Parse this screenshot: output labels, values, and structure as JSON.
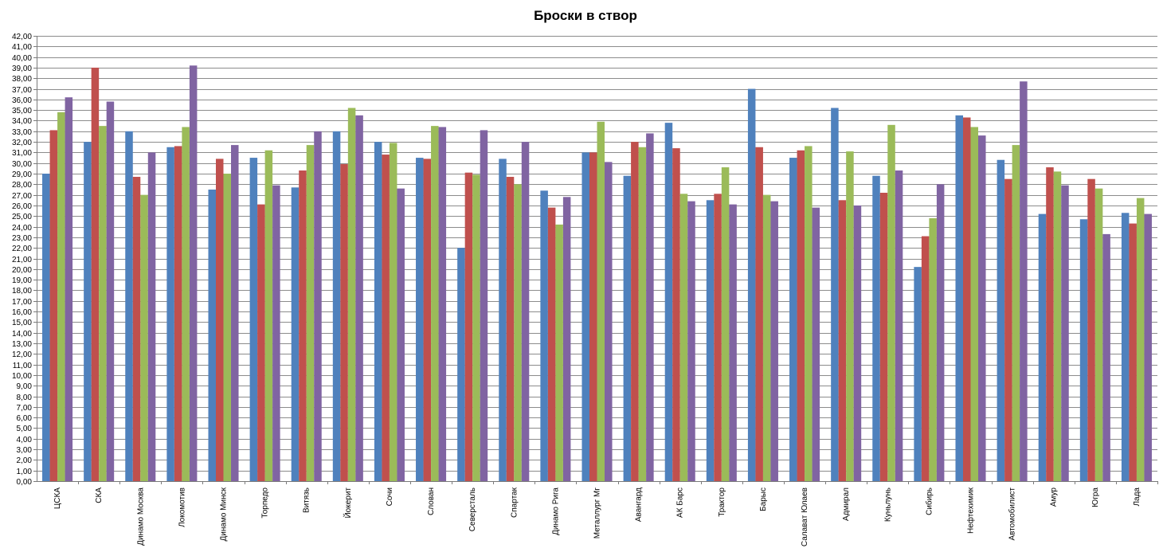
{
  "chart_data": {
    "type": "bar",
    "title": "Броски в створ",
    "xlabel": "",
    "ylabel": "",
    "ylim": [
      0,
      42
    ],
    "ytick_step": 1,
    "ytick_format": "comma-2-decimals",
    "grid": true,
    "legend": "none",
    "colors": [
      "#4f81bd",
      "#c0504d",
      "#9bbb59",
      "#8064a2"
    ],
    "categories": [
      "ЦСКА",
      "СКА",
      "Динамо Москва",
      "Локомотив",
      "Динамо Минск",
      "Торпедо",
      "Витязь",
      "Йокерит",
      "Сочи",
      "Слован",
      "Северсталь",
      "Спартак",
      "Динамо Рига",
      "Металлург Мг",
      "Авангард",
      "АК Барс",
      "Трактор",
      "Барыс",
      "Салават Юлаев",
      "Адмирал",
      "Куньлунь",
      "Сибирь",
      "Нефтехимик",
      "Автомобилист",
      "Амур",
      "Югра",
      "Лада"
    ],
    "series": [
      {
        "values": [
          29.0,
          32.0,
          33.0,
          31.5,
          27.5,
          30.5,
          27.7,
          33.0,
          32.0,
          30.5,
          22.0,
          30.4,
          27.4,
          31.0,
          28.8,
          33.8,
          26.5,
          37.0,
          30.5,
          35.2,
          28.8,
          20.2,
          34.5,
          30.3,
          25.2,
          24.7,
          25.3
        ]
      },
      {
        "values": [
          33.1,
          39.0,
          28.7,
          31.6,
          30.4,
          26.1,
          29.3,
          29.9,
          30.8,
          30.4,
          29.1,
          28.7,
          25.8,
          31.0,
          32.0,
          31.4,
          27.1,
          31.5,
          31.2,
          26.5,
          27.2,
          23.1,
          34.3,
          28.5,
          29.6,
          28.5,
          24.3
        ]
      },
      {
        "values": [
          34.8,
          33.5,
          27.0,
          33.4,
          29.0,
          31.2,
          31.7,
          35.2,
          31.9,
          33.5,
          28.9,
          28.0,
          24.2,
          33.9,
          31.5,
          27.1,
          29.6,
          27.0,
          31.6,
          31.1,
          33.6,
          24.8,
          33.4,
          31.7,
          29.2,
          27.6,
          26.7
        ]
      },
      {
        "values": [
          36.2,
          35.8,
          31.0,
          39.2,
          31.7,
          27.9,
          33.0,
          34.5,
          27.6,
          33.4,
          33.1,
          32.0,
          26.8,
          30.1,
          32.8,
          26.4,
          26.1,
          26.4,
          25.8,
          26.0,
          29.3,
          28.0,
          32.6,
          37.7,
          27.9,
          23.3,
          25.2
        ]
      }
    ]
  }
}
